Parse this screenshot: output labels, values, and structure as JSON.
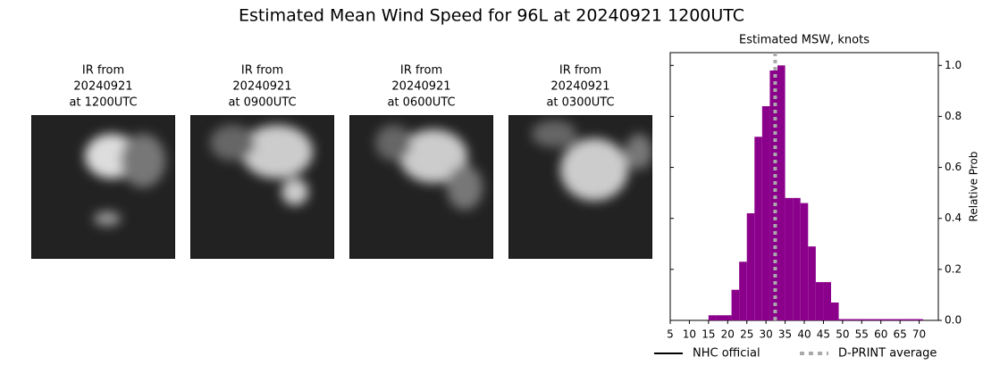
{
  "title": "Estimated Mean Wind Speed for 96L at 20240921 1200UTC",
  "panels": [
    {
      "lines": [
        "IR from",
        "20240921",
        "at 1200UTC"
      ]
    },
    {
      "lines": [
        "IR from",
        "20240921",
        "at 0900UTC"
      ]
    },
    {
      "lines": [
        "IR from",
        "20240921",
        "at 0600UTC"
      ]
    },
    {
      "lines": [
        "IR from",
        "20240921",
        "at 0300UTC"
      ]
    }
  ],
  "chart_data": {
    "type": "histogram",
    "title": "Estimated MSW, knots",
    "ylabel": "Relative Prob",
    "color": "#8b008b",
    "bins": [
      15,
      17,
      19,
      21,
      23,
      25,
      27,
      29,
      31,
      33,
      35,
      37,
      39,
      41,
      43,
      45,
      47,
      49,
      51,
      53,
      55,
      57,
      59,
      61,
      63,
      65,
      67,
      69,
      71
    ],
    "counts": [
      0.02,
      0.02,
      0.02,
      0.12,
      0.23,
      0.42,
      0.72,
      0.84,
      0.98,
      1.0,
      0.48,
      0.48,
      0.46,
      0.29,
      0.15,
      0.15,
      0.07,
      0.005,
      0.005,
      0.005,
      0.005,
      0.005,
      0.005,
      0.005,
      0.005,
      0.005,
      0.005,
      0.005
    ],
    "dprint_average": 32.4,
    "xlim": [
      5,
      75
    ],
    "ylim": [
      0,
      1.05
    ],
    "xticks": [
      5,
      10,
      15,
      20,
      25,
      30,
      35,
      40,
      45,
      50,
      55,
      60,
      65,
      70
    ],
    "yticks": [
      {
        "value": 0,
        "label": "0.0"
      },
      0.2,
      0.4,
      0.6,
      0.8,
      {
        "value": 1,
        "label": "1.0"
      }
    ],
    "legend": [
      {
        "name": "NHC official",
        "color": "#000000",
        "dash": false
      },
      {
        "name": "D-PRINT average",
        "color": "#aaaaaa",
        "dash": true
      }
    ]
  }
}
